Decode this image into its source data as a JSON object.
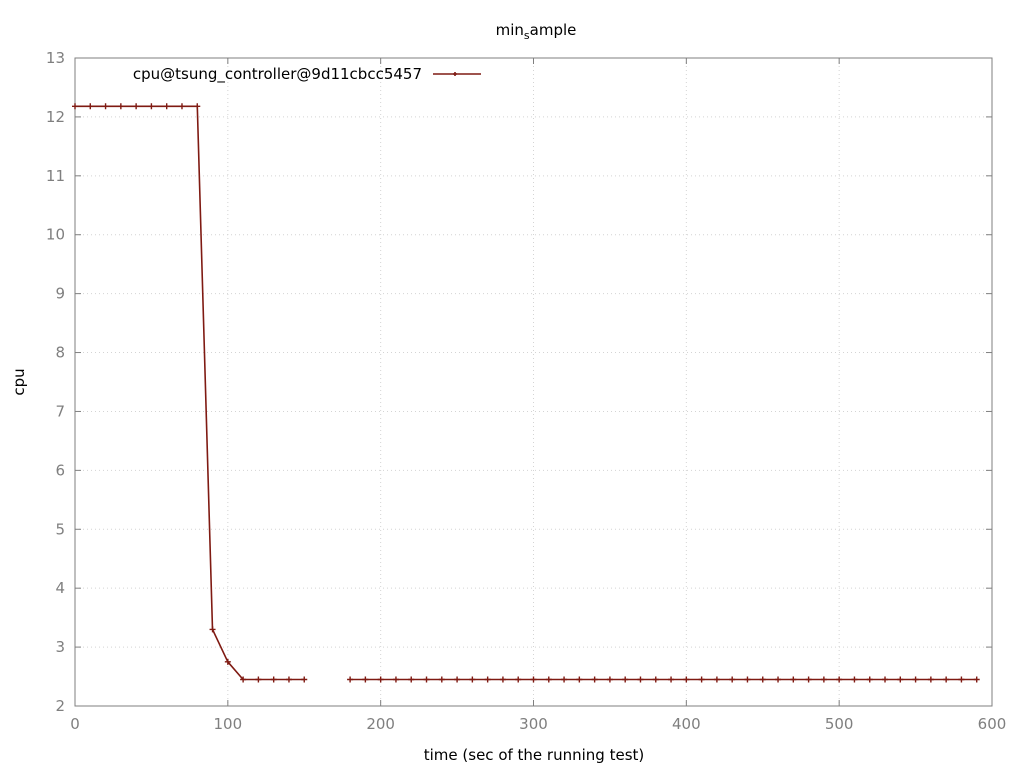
{
  "chart_data": {
    "type": "line",
    "title": {
      "base": "min",
      "subscript": "s",
      "rest": "ample"
    },
    "xlabel": "time (sec of the running test)",
    "ylabel": "cpu",
    "xlim": [
      0,
      600
    ],
    "ylim": [
      2,
      13
    ],
    "xticks": [
      0,
      100,
      200,
      300,
      400,
      500,
      600
    ],
    "yticks": [
      2,
      3,
      4,
      5,
      6,
      7,
      8,
      9,
      10,
      11,
      12,
      13
    ],
    "grid": true,
    "legend_position": "top-left",
    "series": [
      {
        "name": "cpu@tsung_controller@9d11cbcc5457",
        "color": "#7f1a12",
        "segments": [
          {
            "x": [
              0,
              10,
              20,
              30,
              40,
              50,
              60,
              70,
              80,
              90,
              100,
              110,
              120,
              130,
              140,
              150
            ],
            "y": [
              12.18,
              12.18,
              12.18,
              12.18,
              12.18,
              12.18,
              12.18,
              12.18,
              12.18,
              3.3,
              2.75,
              2.45,
              2.45,
              2.45,
              2.45,
              2.45
            ]
          },
          {
            "x": [
              180,
              190,
              200,
              210,
              220,
              230,
              240,
              250,
              260,
              270,
              280,
              290,
              300,
              310,
              320,
              330,
              340,
              350,
              360,
              370,
              380,
              390,
              400,
              410,
              420,
              430,
              440,
              450,
              460,
              470,
              480,
              490,
              500,
              510,
              520,
              530,
              540,
              550,
              560,
              570,
              580,
              590
            ],
            "y": [
              2.45,
              2.45,
              2.45,
              2.45,
              2.45,
              2.45,
              2.45,
              2.45,
              2.45,
              2.45,
              2.45,
              2.45,
              2.45,
              2.45,
              2.45,
              2.45,
              2.45,
              2.45,
              2.45,
              2.45,
              2.45,
              2.45,
              2.45,
              2.45,
              2.45,
              2.45,
              2.45,
              2.45,
              2.45,
              2.45,
              2.45,
              2.45,
              2.45,
              2.45,
              2.45,
              2.45,
              2.45,
              2.45,
              2.45,
              2.45,
              2.45,
              2.45
            ]
          }
        ]
      }
    ]
  }
}
